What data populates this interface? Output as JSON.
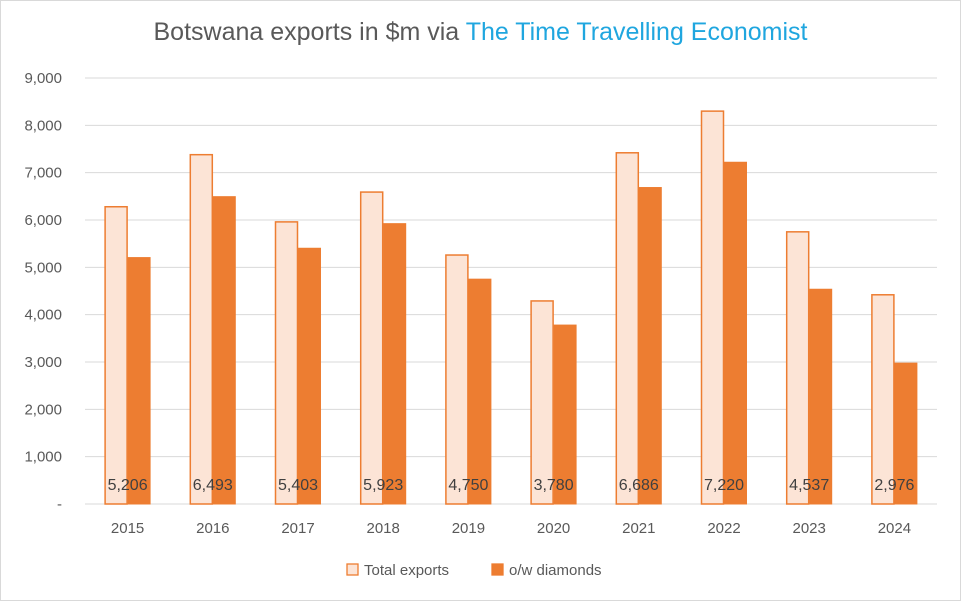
{
  "chart_data": {
    "type": "bar",
    "title_prefix": "Botswana exports in $m via ",
    "title_brand": "The Time Travelling Economist",
    "categories": [
      "2015",
      "2016",
      "2017",
      "2018",
      "2019",
      "2020",
      "2021",
      "2022",
      "2023",
      "2024"
    ],
    "series": [
      {
        "name": "Total exports",
        "values": [
          6280,
          7380,
          5960,
          6590,
          5260,
          4290,
          7420,
          8300,
          5750,
          4420
        ],
        "fill": "#fce4d6",
        "stroke": "#ed7d31"
      },
      {
        "name": "o/w diamonds",
        "values": [
          5206,
          6493,
          5403,
          5923,
          4750,
          3780,
          6686,
          7220,
          4537,
          2976
        ],
        "fill": "#ed7d31",
        "stroke": "#ed7d31"
      }
    ],
    "data_labels": [
      "5,206",
      "6,493",
      "5,403",
      "5,923",
      "4,750",
      "3,780",
      "6,686",
      "7,220",
      "4,537",
      "2,976"
    ],
    "y_tick_labels": [
      "-",
      "1,000",
      "2,000",
      "3,000",
      "4,000",
      "5,000",
      "6,000",
      "7,000",
      "8,000",
      "9,000"
    ],
    "ylim": [
      0,
      9000
    ],
    "grid": true,
    "legend_position": "bottom",
    "colors": {
      "title": "#595959",
      "brand": "#1fa6df",
      "grid": "#d9d9d9",
      "text": "#595959"
    }
  }
}
